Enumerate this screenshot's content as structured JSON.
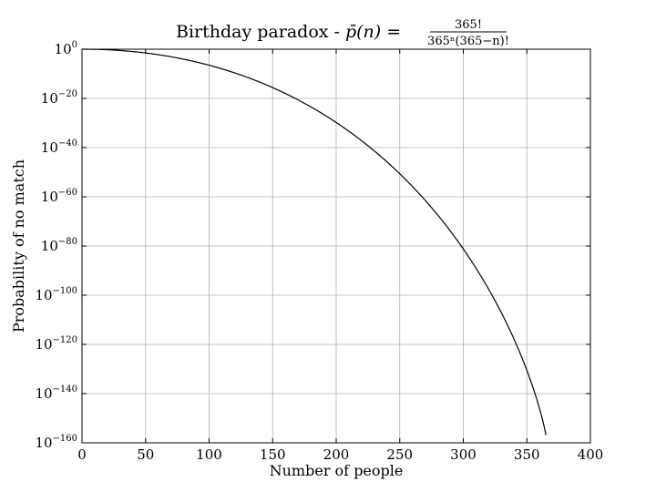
{
  "chart_data": {
    "type": "line",
    "title": "Birthday paradox - p̄(n) = 365! / (365ⁿ(365−n)!)",
    "title_prefix": "Birthday paradox - ",
    "title_lhs": "p̄(n) = ",
    "title_numerator": "365!",
    "title_denominator": "365ⁿ(365−n)!",
    "xlabel": "Number of people",
    "ylabel": "Probability of no match",
    "xlim": [
      0,
      400
    ],
    "ylim": [
      1e-160,
      1
    ],
    "yscale": "log",
    "grid": true,
    "x_ticks": [
      0,
      50,
      100,
      150,
      200,
      250,
      300,
      350,
      400
    ],
    "y_ticks": [
      {
        "value": 1,
        "base": "10",
        "exponent": "0"
      },
      {
        "value": 1e-20,
        "base": "10",
        "exponent": "−20"
      },
      {
        "value": 1e-40,
        "base": "10",
        "exponent": "−40"
      },
      {
        "value": 1e-60,
        "base": "10",
        "exponent": "−60"
      },
      {
        "value": 1e-80,
        "base": "10",
        "exponent": "−80"
      },
      {
        "value": 1e-100,
        "base": "10",
        "exponent": "−100"
      },
      {
        "value": 1e-120,
        "base": "10",
        "exponent": "−120"
      },
      {
        "value": 1e-140,
        "base": "10",
        "exponent": "−140"
      },
      {
        "value": 1e-160,
        "base": "10",
        "exponent": "−160"
      }
    ],
    "series": [
      {
        "function": "365!/(365^n (365-n)!)",
        "x": [
          0,
          25,
          50,
          75,
          100,
          125,
          150,
          175,
          200,
          225,
          250,
          275,
          300,
          325,
          340,
          350,
          360,
          365
        ],
        "y": [
          1,
          0.4313,
          0.02963,
          0.00012,
          3.07e-07,
          4.8e-11,
          4.4e-16,
          2.3e-22,
          6.7e-30,
          8.7e-39,
          4.4e-49,
          6.6e-61,
          2e-74,
          7e-90,
          4.1e-100,
          1.3e-107,
          1.9e-117,
          1.45e-157
        ]
      }
    ],
    "color": "#000000"
  }
}
